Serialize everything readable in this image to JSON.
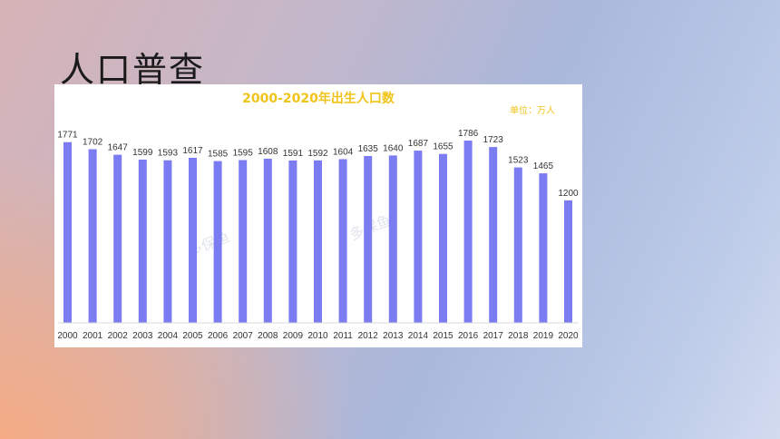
{
  "slide": {
    "title": "人口普查"
  },
  "watermark": "多保鱼",
  "colors": {
    "bar": "#7b7cf2",
    "title": "#f0c419",
    "unit": "#f0c419"
  },
  "chart_data": {
    "type": "bar",
    "title": "2000-2020年出生人口数",
    "unit_label": "单位：万人",
    "categories": [
      "2000",
      "2001",
      "2002",
      "2003",
      "2004",
      "2005",
      "2006",
      "2007",
      "2008",
      "2009",
      "2010",
      "2011",
      "2012",
      "2013",
      "2014",
      "2015",
      "2016",
      "2017",
      "2018",
      "2019",
      "2020"
    ],
    "values": [
      1771,
      1702,
      1647,
      1599,
      1593,
      1617,
      1585,
      1595,
      1608,
      1591,
      1592,
      1604,
      1635,
      1640,
      1687,
      1655,
      1786,
      1723,
      1523,
      1465,
      1200
    ],
    "ylim": [
      0,
      1800
    ],
    "grid": false,
    "legend": "none"
  }
}
